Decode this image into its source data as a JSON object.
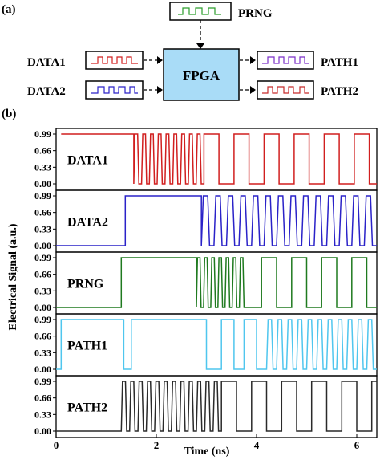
{
  "panel_a": {
    "label": "(a)",
    "prng_label": "PRNG",
    "fpga_label": "FPGA",
    "inputs": [
      "DATA1",
      "DATA2"
    ],
    "outputs": [
      "PATH1",
      "PATH2"
    ]
  },
  "panel_b": {
    "label": "(b)"
  },
  "chart_data": {
    "type": "line",
    "xlabel": "Time (ns)",
    "ylabel": "Electrical Signal (a.u.)",
    "xlim": [
      0,
      6.4
    ],
    "ylim": [
      0,
      0.99
    ],
    "xticks": [
      "0",
      "2",
      "4",
      "6"
    ],
    "yticks": [
      "0.00",
      "0.33",
      "0.66",
      "0.99"
    ],
    "series": [
      {
        "name": "DATA1",
        "color": "#d11f1f",
        "segments": [
          [
            0.1,
            1.55,
            1
          ],
          [
            1.55,
            2.95,
            "pulses:9"
          ],
          [
            2.95,
            3.25,
            1
          ],
          [
            3.25,
            3.55,
            0
          ],
          [
            3.55,
            3.85,
            1
          ],
          [
            3.85,
            4.15,
            0
          ],
          [
            4.15,
            4.45,
            1
          ],
          [
            4.45,
            4.75,
            0
          ],
          [
            4.75,
            5.05,
            1
          ],
          [
            5.05,
            5.35,
            0
          ],
          [
            5.35,
            5.65,
            1
          ],
          [
            5.65,
            5.95,
            0
          ],
          [
            5.95,
            6.25,
            1
          ],
          [
            6.25,
            6.4,
            0
          ]
        ]
      },
      {
        "name": "DATA2",
        "color": "#2a22c8",
        "segments": [
          [
            0.0,
            1.38,
            0
          ],
          [
            1.38,
            2.9,
            1
          ],
          [
            2.9,
            6.4,
            "pulses:14"
          ]
        ]
      },
      {
        "name": "PRNG",
        "color": "#1f7a1f",
        "segments": [
          [
            0.0,
            1.3,
            0
          ],
          [
            1.3,
            2.8,
            1
          ],
          [
            2.8,
            3.8,
            "pulses:7"
          ],
          [
            3.8,
            4.1,
            0
          ],
          [
            4.1,
            4.4,
            1
          ],
          [
            4.4,
            4.7,
            0
          ],
          [
            4.7,
            5.0,
            1
          ],
          [
            5.0,
            5.3,
            0
          ],
          [
            5.3,
            5.6,
            1
          ],
          [
            5.6,
            5.9,
            0
          ],
          [
            5.9,
            6.2,
            1
          ],
          [
            6.2,
            6.4,
            0
          ]
        ]
      },
      {
        "name": "PATH1",
        "color": "#4fc6ee",
        "segments": [
          [
            0.0,
            0.1,
            0
          ],
          [
            0.1,
            1.35,
            1
          ],
          [
            1.35,
            1.5,
            0
          ],
          [
            1.5,
            3.0,
            1
          ],
          [
            3.0,
            3.3,
            0
          ],
          [
            3.3,
            3.55,
            1
          ],
          [
            3.55,
            3.75,
            0
          ],
          [
            3.75,
            4.0,
            1
          ],
          [
            4.0,
            4.2,
            0
          ],
          [
            4.2,
            6.4,
            "pulses:11"
          ]
        ]
      },
      {
        "name": "PATH2",
        "color": "#2a2a2a",
        "segments": [
          [
            0.0,
            1.3,
            0
          ],
          [
            1.3,
            3.3,
            "pulses:12"
          ],
          [
            3.3,
            3.6,
            1
          ],
          [
            3.6,
            3.9,
            0
          ],
          [
            3.9,
            4.2,
            1
          ],
          [
            4.2,
            4.5,
            0
          ],
          [
            4.5,
            4.8,
            1
          ],
          [
            4.8,
            5.1,
            0
          ],
          [
            5.1,
            5.4,
            1
          ],
          [
            5.4,
            5.7,
            0
          ],
          [
            5.7,
            6.0,
            1
          ],
          [
            6.0,
            6.3,
            0
          ],
          [
            6.3,
            6.4,
            1
          ]
        ]
      }
    ]
  }
}
